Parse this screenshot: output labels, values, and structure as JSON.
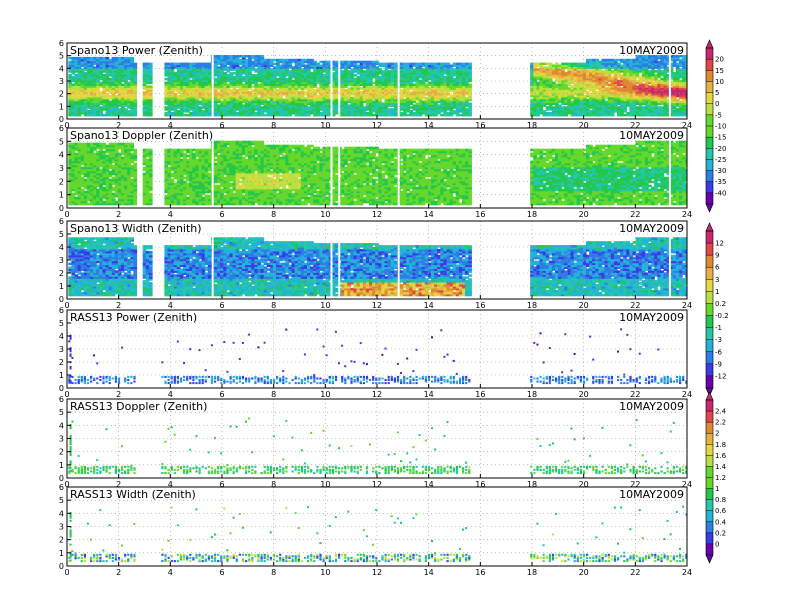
{
  "figure": {
    "date": "10MAY2009"
  },
  "chart_data": [
    {
      "type": "heatmap",
      "title": "Spano13 Power (Zenith)",
      "date": "10MAY2009",
      "xlim": [
        0,
        24
      ],
      "ylim": [
        0,
        6
      ],
      "xticks": [
        0,
        2,
        4,
        6,
        8,
        10,
        12,
        14,
        16,
        18,
        20,
        22,
        24
      ],
      "yticks": [
        0,
        1,
        2,
        3,
        4,
        5,
        6
      ],
      "data_gaps_hours": [
        [
          2.6,
          2.9
        ],
        [
          3.2,
          3.7
        ],
        [
          15.6,
          17.9
        ]
      ],
      "colorbar": {
        "ticks": [
          "20",
          "15",
          "10",
          "5",
          "0",
          "-5",
          "-10",
          "-15",
          "-20",
          "-25",
          "-30",
          "-35",
          "-40"
        ]
      }
    },
    {
      "type": "heatmap",
      "title": "Spano13 Doppler (Zenith)",
      "date": "10MAY2009",
      "xlim": [
        0,
        24
      ],
      "ylim": [
        0,
        6
      ],
      "xticks": [
        0,
        2,
        4,
        6,
        8,
        10,
        12,
        14,
        16,
        18,
        20,
        22,
        24
      ],
      "yticks": [
        0,
        1,
        2,
        3,
        4,
        5,
        6
      ],
      "data_gaps_hours": [
        [
          2.6,
          2.9
        ],
        [
          3.2,
          3.7
        ],
        [
          15.6,
          17.9
        ]
      ]
    },
    {
      "type": "heatmap",
      "title": "Spano13 Width (Zenith)",
      "date": "10MAY2009",
      "xlim": [
        0,
        24
      ],
      "ylim": [
        0,
        6
      ],
      "xticks": [
        0,
        2,
        4,
        6,
        8,
        10,
        12,
        14,
        16,
        18,
        20,
        22,
        24
      ],
      "yticks": [
        0,
        1,
        2,
        3,
        4,
        5,
        6
      ],
      "data_gaps_hours": [
        [
          2.6,
          2.9
        ],
        [
          3.2,
          3.7
        ],
        [
          15.6,
          17.9
        ]
      ],
      "colorbar": {
        "ticks": [
          "12",
          "9",
          "6",
          "3",
          "1",
          "0.2",
          "-0.2",
          "-1",
          "-3",
          "-6",
          "-9",
          "-12"
        ]
      }
    },
    {
      "type": "heatmap",
      "title": "RASS13 Power (Zenith)",
      "date": "10MAY2009",
      "xlim": [
        0,
        24
      ],
      "ylim": [
        0,
        6
      ],
      "xticks": [
        0,
        2,
        4,
        6,
        8,
        10,
        12,
        14,
        16,
        18,
        20,
        22,
        24
      ],
      "yticks": [
        0,
        1,
        2,
        3,
        4,
        5,
        6
      ],
      "data_gaps_hours": [
        [
          15.6,
          17.9
        ]
      ]
    },
    {
      "type": "heatmap",
      "title": "RASS13 Doppler (Zenith)",
      "date": "10MAY2009",
      "xlim": [
        0,
        24
      ],
      "ylim": [
        0,
        6
      ],
      "xticks": [
        0,
        2,
        4,
        6,
        8,
        10,
        12,
        14,
        16,
        18,
        20,
        22,
        24
      ],
      "yticks": [
        0,
        1,
        2,
        3,
        4,
        5,
        6
      ],
      "data_gaps_hours": [
        [
          15.6,
          17.9
        ]
      ],
      "colorbar": {
        "ticks": [
          "2.4",
          "2.2",
          "2",
          "1.8",
          "1.6",
          "1.4",
          "1.2",
          "1",
          "0.8",
          "0.6",
          "0.4",
          "0.2",
          "0"
        ]
      }
    },
    {
      "type": "heatmap",
      "title": "RASS13 Width (Zenith)",
      "date": "10MAY2009",
      "xlim": [
        0,
        24
      ],
      "ylim": [
        0,
        6
      ],
      "xticks": [
        0,
        2,
        4,
        6,
        8,
        10,
        12,
        14,
        16,
        18,
        20,
        22,
        24
      ],
      "yticks": [
        0,
        1,
        2,
        3,
        4,
        5,
        6
      ],
      "data_gaps_hours": [
        [
          15.6,
          17.9
        ]
      ]
    }
  ],
  "colors": {
    "ramp": [
      "#6a00b0",
      "#3a3ae8",
      "#2c7de6",
      "#22b3d8",
      "#22c8a8",
      "#22c84a",
      "#66d82a",
      "#b8e040",
      "#e6d640",
      "#e8b040",
      "#e08830",
      "#e04848",
      "#c8286a"
    ]
  }
}
